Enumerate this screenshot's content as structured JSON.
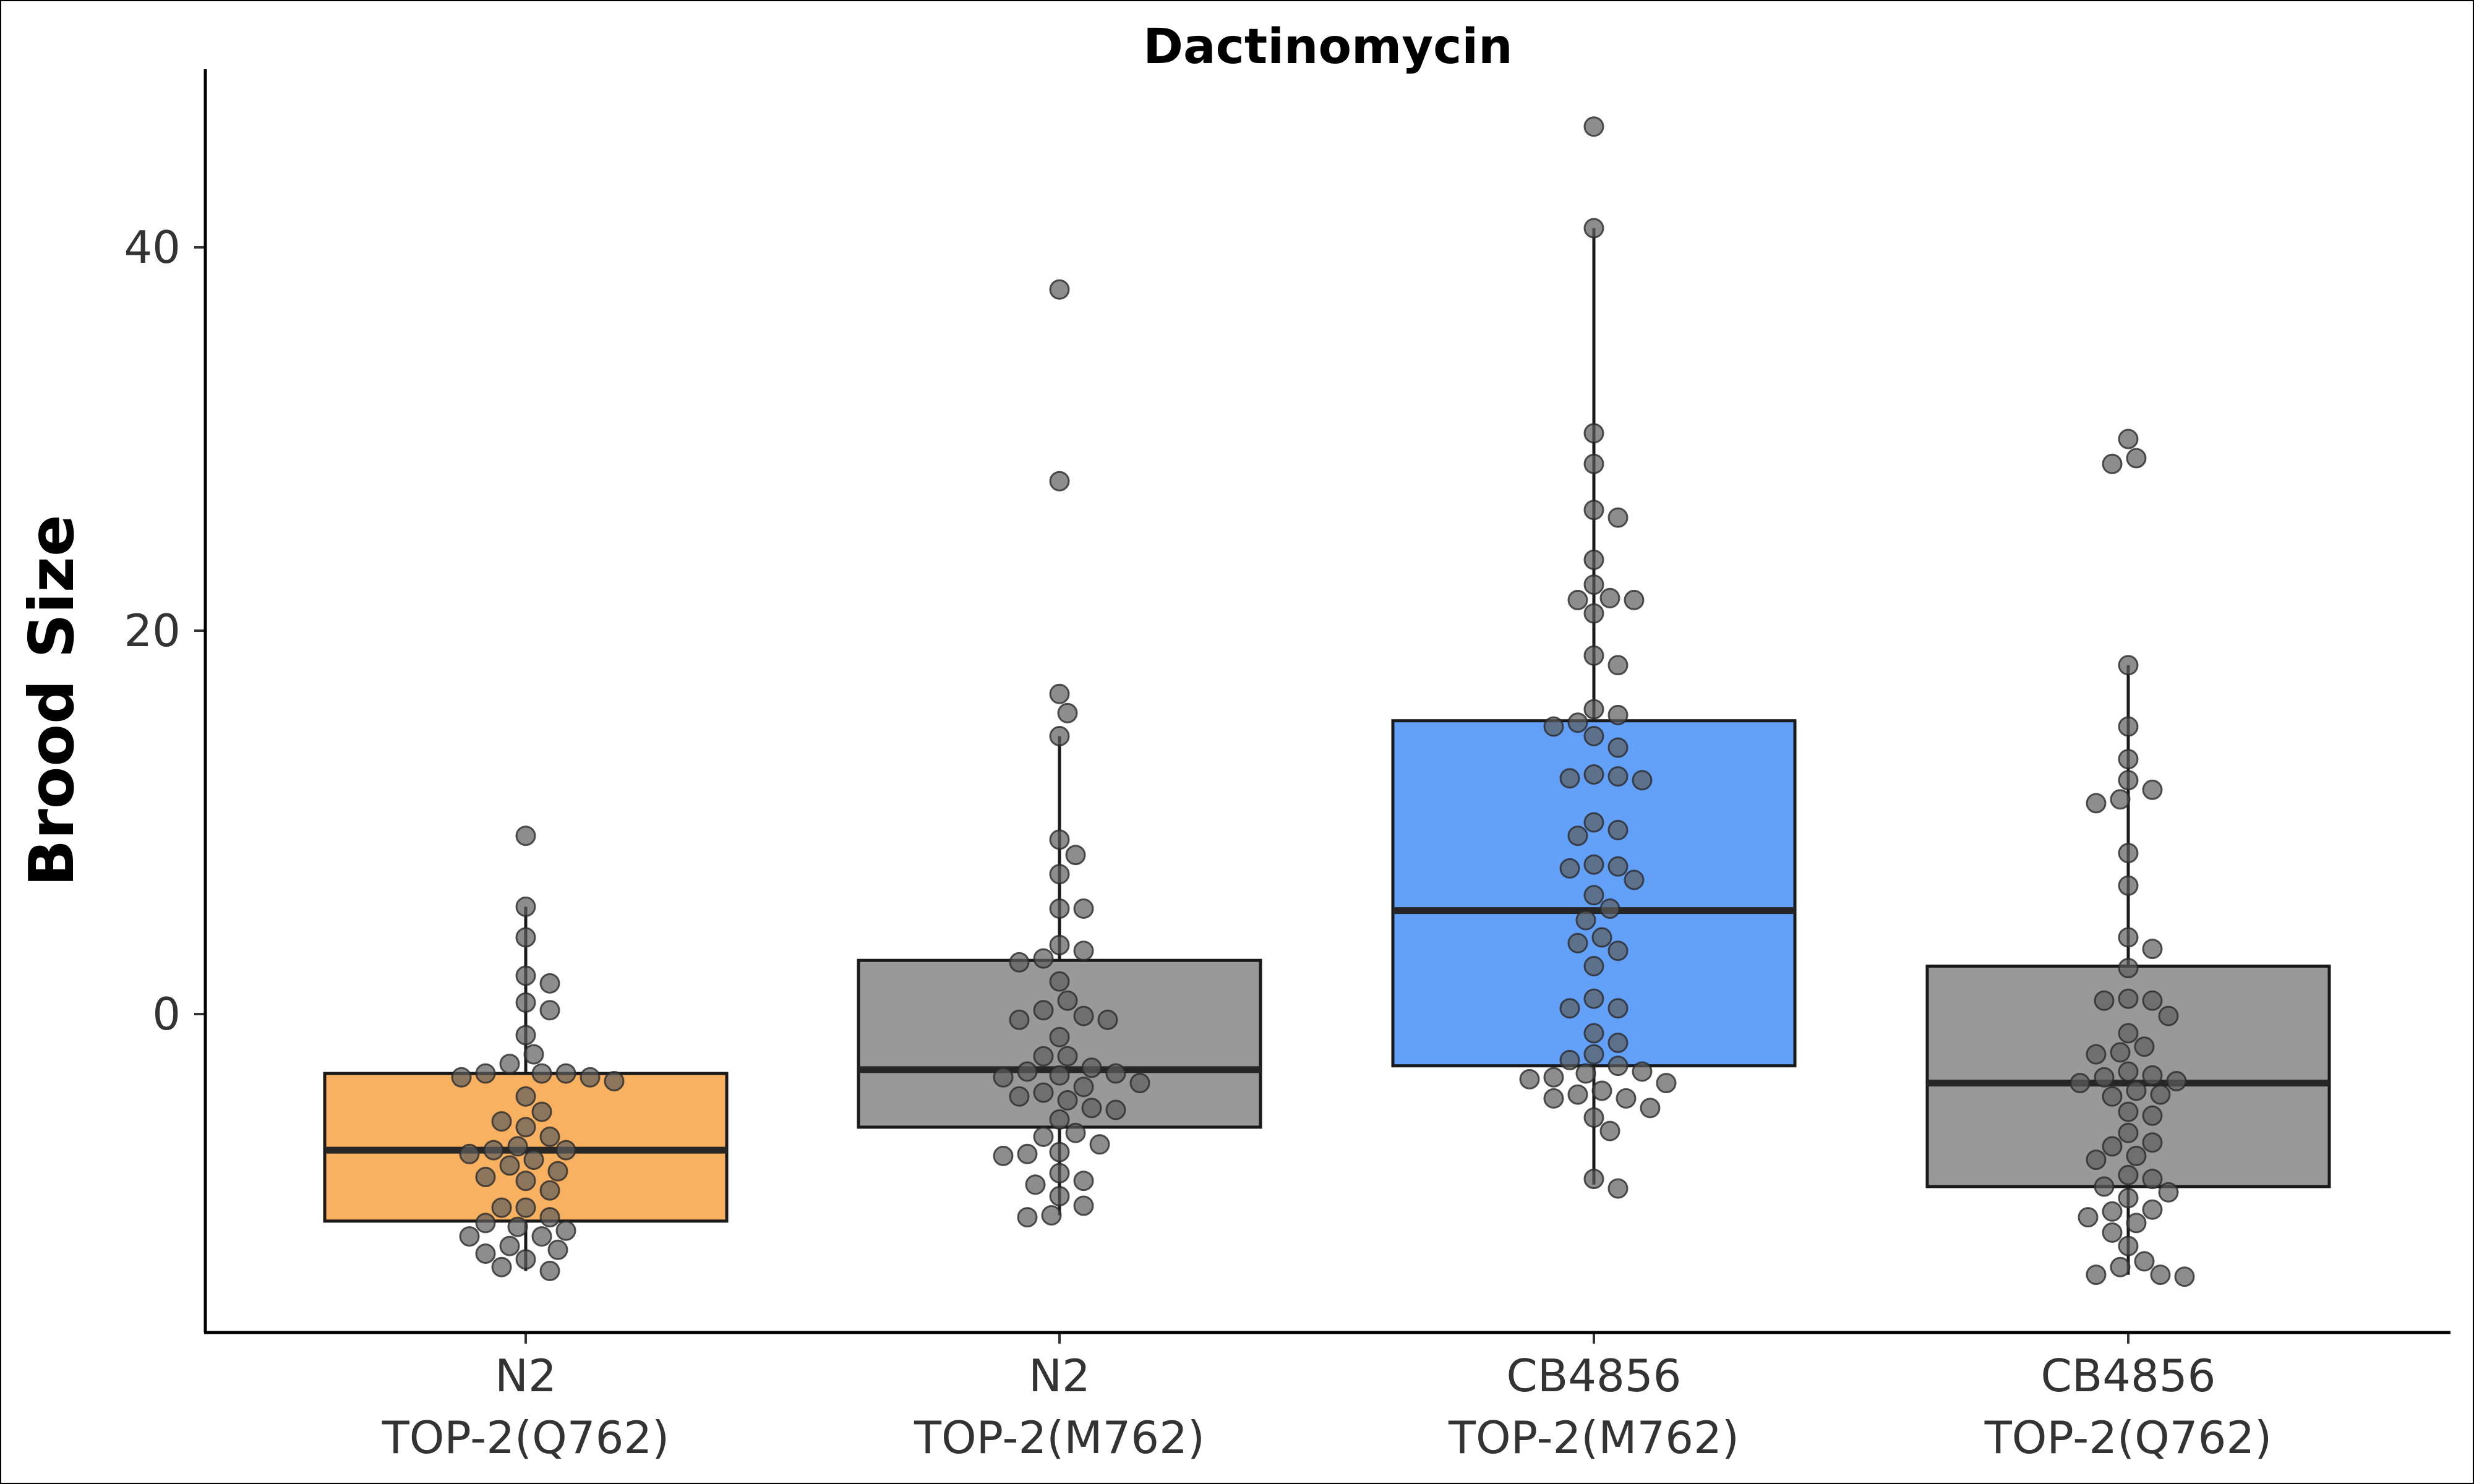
{
  "chart_data": {
    "type": "box",
    "title": "Dactinomycin",
    "ylabel": "Brood Size",
    "xlabel": "",
    "ylim": [
      -16.5,
      49.5
    ],
    "yticks": [
      0,
      20,
      40
    ],
    "grid": false,
    "legend": "none",
    "categories": [
      {
        "line1": "N2",
        "line2": "TOP-2(Q762)"
      },
      {
        "line1": "N2",
        "line2": "TOP-2(M762)"
      },
      {
        "line1": "CB4856",
        "line2": "TOP-2(M762)"
      },
      {
        "line1": "CB4856",
        "line2": "TOP-2(Q762)"
      }
    ],
    "boxes": [
      {
        "fill": "#F8B160",
        "q1": -10.8,
        "median": -7.1,
        "q3": -3.1,
        "whisker_low": -13.4,
        "whisker_high": 5.6
      },
      {
        "fill": "#999999",
        "q1": -5.9,
        "median": -2.9,
        "q3": 2.8,
        "whisker_low": -10.5,
        "whisker_high": 14.5
      },
      {
        "fill": "#63A1F8",
        "q1": -2.7,
        "median": 5.4,
        "q3": 15.3,
        "whisker_low": -8.9,
        "whisker_high": 41.0
      },
      {
        "fill": "#999999",
        "q1": -9.0,
        "median": -3.6,
        "q3": 2.5,
        "whisker_low": -13.6,
        "whisker_high": 18.2
      }
    ],
    "points": [
      [
        9.3,
        5.6,
        4.0,
        2.0,
        1.6,
        0.6,
        0.2,
        -1.1,
        -2.1,
        -2.6,
        -3.1,
        -3.1,
        -3.1,
        -3.3,
        -3.3,
        -3.5,
        -4.3,
        -5.1,
        -5.9,
        -5.6,
        -6.4,
        -6.9,
        -7.1,
        -7.1,
        -7.3,
        -7.6,
        -7.9,
        -8.2,
        -8.5,
        -8.7,
        -9.2,
        -10.1,
        -10.1,
        -10.6,
        -10.9,
        -11.1,
        -11.3,
        -11.6,
        -11.6,
        -12.1,
        -12.3,
        -12.5,
        -12.8,
        -13.2,
        -13.4
      ],
      [
        37.8,
        27.8,
        16.7,
        15.7,
        14.5,
        9.1,
        8.3,
        7.3,
        5.5,
        5.5,
        3.6,
        3.3,
        2.9,
        2.7,
        1.7,
        0.7,
        0.2,
        -0.1,
        -0.3,
        -0.3,
        -1.2,
        -2.2,
        -2.2,
        -2.8,
        -3.0,
        -3.1,
        -3.2,
        -3.3,
        -3.6,
        -3.8,
        -4.1,
        -4.3,
        -4.5,
        -4.9,
        -5.0,
        -5.5,
        -6.2,
        -6.4,
        -6.8,
        -7.2,
        -7.3,
        -7.4,
        -8.3,
        -8.7,
        -8.9,
        -9.5,
        -10.0,
        -10.5,
        -10.6
      ],
      [
        46.3,
        41.0,
        30.3,
        28.7,
        26.3,
        25.9,
        23.7,
        22.4,
        21.7,
        21.6,
        21.6,
        20.9,
        18.7,
        18.2,
        15.9,
        15.6,
        15.2,
        15.0,
        14.5,
        13.9,
        12.5,
        12.4,
        12.3,
        12.2,
        10.0,
        9.6,
        9.3,
        7.8,
        7.7,
        7.6,
        7.0,
        6.2,
        5.5,
        4.9,
        4.0,
        3.7,
        3.3,
        2.5,
        0.8,
        0.3,
        0.3,
        -1.0,
        -1.5,
        -2.1,
        -2.4,
        -2.7,
        -3.0,
        -3.1,
        -3.3,
        -3.4,
        -3.6,
        -4.0,
        -4.2,
        -4.4,
        -4.4,
        -4.9,
        -5.4,
        -6.1,
        -8.6,
        -9.1
      ],
      [
        30.0,
        29.0,
        28.7,
        18.2,
        15.0,
        13.3,
        12.2,
        11.7,
        11.2,
        11.0,
        8.4,
        6.7,
        4.0,
        3.4,
        2.4,
        0.8,
        0.7,
        0.7,
        -0.1,
        -1.0,
        -1.7,
        -2.0,
        -2.1,
        -3.0,
        -3.2,
        -3.3,
        -3.5,
        -3.6,
        -4.0,
        -4.2,
        -4.3,
        -5.1,
        -5.3,
        -6.2,
        -6.7,
        -6.9,
        -7.4,
        -7.6,
        -8.4,
        -8.6,
        -9.0,
        -9.3,
        -9.6,
        -10.2,
        -10.3,
        -10.6,
        -10.9,
        -11.4,
        -12.1,
        -12.9,
        -13.2,
        -13.6,
        -13.6,
        -13.7
      ]
    ],
    "point_color": "#5c5c5c",
    "line_color": "#1a1a1a",
    "median_color": "#262626"
  }
}
